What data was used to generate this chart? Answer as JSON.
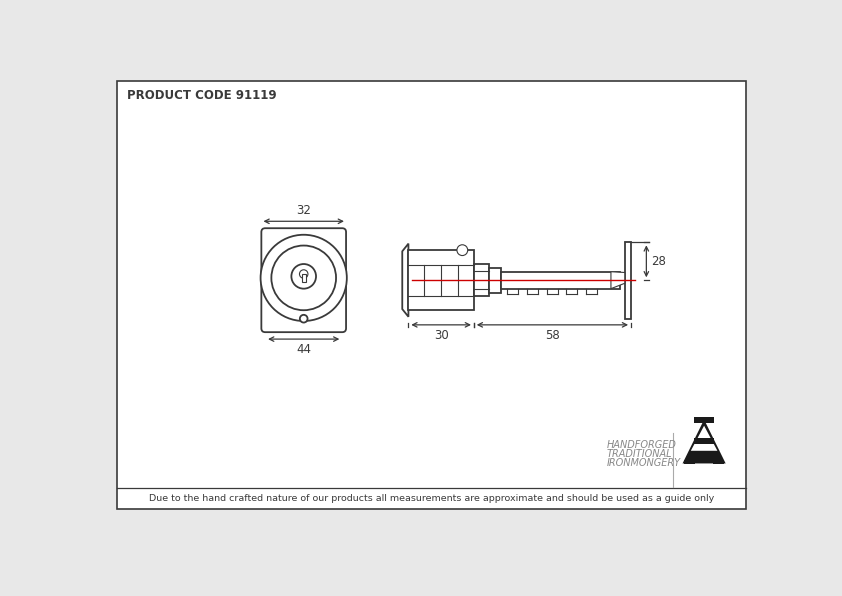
{
  "title": "PRODUCT CODE 91119",
  "footer": "Due to the hand crafted nature of our products all measurements are approximate and should be used as a guide only",
  "brand_line1": "HANDFORGED",
  "brand_line2": "TRADITIONAL",
  "brand_line3": "IRONMONGERY",
  "bg_color": "#e8e8e8",
  "draw_color": "#3a3a3a",
  "red_line_color": "#cc0000",
  "dim_32": "32",
  "dim_44": "44",
  "dim_30": "30",
  "dim_58": "58",
  "dim_28": "28"
}
